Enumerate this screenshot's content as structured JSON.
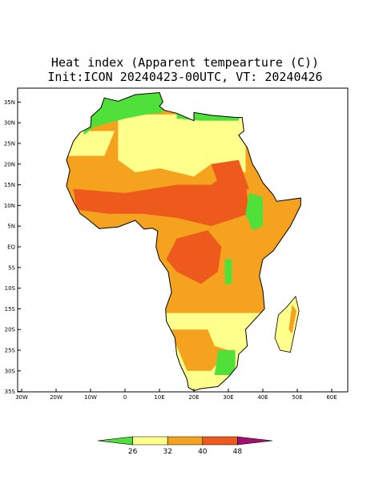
{
  "title": {
    "line1": "Heat index (Apparent tempearture (C))",
    "line2": "Init:ICON 20240423-00UTC, VT: 20240426"
  },
  "axes": {
    "lat_labels": [
      "35N",
      "30N",
      "25N",
      "20N",
      "15N",
      "10N",
      "5N",
      "EQ",
      "5S",
      "10S",
      "15S",
      "20S",
      "25S",
      "30S",
      "35S"
    ],
    "lon_labels": [
      "30W",
      "20W",
      "10W",
      "0",
      "10E",
      "20E",
      "30E",
      "40E",
      "50E",
      "60E"
    ]
  },
  "legend": {
    "labels": [
      "26",
      "32",
      "40",
      "48"
    ],
    "colors": [
      "#4fe03a",
      "#ffff8c",
      "#f5a21e",
      "#ee5a1c",
      "#a3106e"
    ]
  }
}
